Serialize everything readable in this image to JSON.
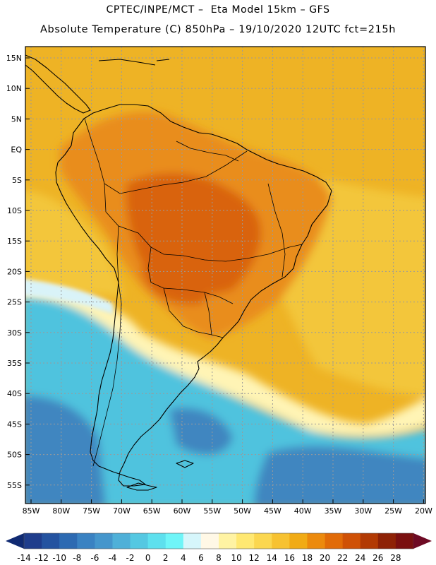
{
  "header": {
    "line1": "CPTEC/INPE/MCT –  Eta Model 15km – GFS",
    "line2": "Absolute Temperature (C) 850hPa – 19/10/2020 12UTC fct=215h"
  },
  "axes": {
    "lat_labels": [
      "15N",
      "10N",
      "5N",
      "EQ",
      "5S",
      "10S",
      "15S",
      "20S",
      "25S",
      "30S",
      "35S",
      "40S",
      "45S",
      "50S",
      "55S"
    ],
    "lon_labels": [
      "85W",
      "80W",
      "75W",
      "70W",
      "65W",
      "60W",
      "55W",
      "50W",
      "45W",
      "40W",
      "35W",
      "30W",
      "25W",
      "20W"
    ]
  },
  "colorbar": {
    "labels": [
      "-14",
      "-12",
      "-10",
      "-8",
      "-6",
      "-4",
      "-2",
      "0",
      "2",
      "4",
      "6",
      "8",
      "10",
      "12",
      "14",
      "16",
      "18",
      "20",
      "22",
      "24",
      "26",
      "28"
    ],
    "colors": [
      "#1f3d8c",
      "#2453a0",
      "#2d6ab2",
      "#3a82c2",
      "#4596cc",
      "#4fb0d8",
      "#55c8e2",
      "#5ee0ee",
      "#6ff5f8",
      "#d6f6fb",
      "#fff8e6",
      "#fff3a3",
      "#ffe872",
      "#fbd750",
      "#f7c231",
      "#f1ab15",
      "#ec8a0d",
      "#e16b08",
      "#cf5106",
      "#b23a04",
      "#8e2206",
      "#7a1010"
    ],
    "under_color": "#102a72",
    "over_color": "#6e0a24"
  },
  "field": {
    "ocean_north": "#eeb325",
    "ocean_mid": "#f3c63b",
    "tropics_land": "#e98d1d",
    "hot_core": "#d9640f",
    "cool_ocean": "#4fc3de",
    "cold_ocean": "#3f86c0",
    "transition": "#fff4b5",
    "pale_band": "#d9f3f8"
  },
  "map_colors": {
    "coast": "#000000",
    "grid": "#9a9a9a"
  }
}
